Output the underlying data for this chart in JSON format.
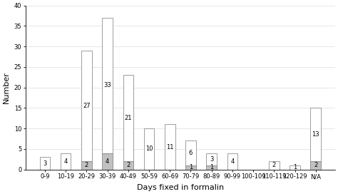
{
  "categories": [
    "0-9",
    "10-19",
    "20-29",
    "30-39",
    "40-49",
    "50-59",
    "60-69",
    "70-79",
    "80-89",
    "90-99",
    "100-109",
    "110-119",
    "120-129",
    "N/A"
  ],
  "white_values": [
    3,
    4,
    27,
    33,
    21,
    10,
    11,
    6,
    3,
    4,
    0,
    2,
    1,
    13
  ],
  "gray_values": [
    0,
    0,
    2,
    4,
    2,
    0,
    0,
    1,
    1,
    0,
    0,
    0,
    0,
    2
  ],
  "white_color": "#ffffff",
  "gray_color": "#c0c0c0",
  "edge_color": "#777777",
  "xlabel": "Days fixed in formalin",
  "ylabel": "Number",
  "ylim": [
    0,
    40
  ],
  "yticks": [
    0,
    5,
    10,
    15,
    20,
    25,
    30,
    35,
    40
  ],
  "label_fontsize": 6.0,
  "axis_label_fontsize": 8,
  "tick_fontsize": 6.0,
  "background_color": "#ffffff",
  "bar_width": 0.5
}
